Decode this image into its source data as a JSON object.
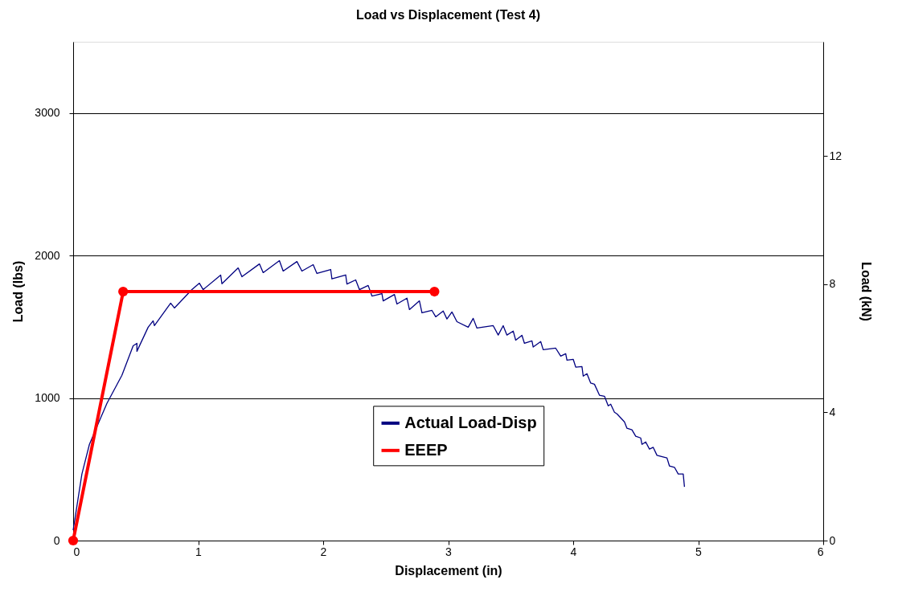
{
  "chart_data": {
    "type": "line",
    "title": "Load vs Displacement (Test 4)",
    "xlabel": "Displacement (in)",
    "ylabel": "Load (lbs)",
    "y2label": "Load (kN)",
    "xlim": [
      0,
      6
    ],
    "xticks": [
      0,
      1,
      2,
      3,
      4,
      5,
      6
    ],
    "ylim": [
      0,
      3500
    ],
    "yticks": [
      0,
      1000,
      2000,
      3000
    ],
    "y2lim": [
      0,
      15.57
    ],
    "y2ticks": [
      0,
      4,
      8,
      12
    ],
    "grid": "y",
    "legend": "bottom",
    "series": [
      {
        "name": "Actual Load-Disp",
        "color": "#000080",
        "marker": "none",
        "x": [
          0.0,
          0.07,
          0.13,
          0.22,
          0.27,
          0.39,
          0.48,
          0.51,
          0.51,
          0.6,
          0.64,
          0.65,
          0.78,
          0.81,
          0.95,
          1.01,
          1.04,
          1.18,
          1.19,
          1.32,
          1.35,
          1.49,
          1.52,
          1.65,
          1.68,
          1.79,
          1.83,
          1.92,
          1.95,
          2.06,
          2.07,
          2.18,
          2.19,
          2.26,
          2.29,
          2.36,
          2.39,
          2.47,
          2.48,
          2.57,
          2.59,
          2.67,
          2.69,
          2.77,
          2.79,
          2.87,
          2.9,
          2.96,
          2.99,
          3.03,
          3.07,
          3.16,
          3.2,
          3.23,
          3.36,
          3.4,
          3.44,
          3.47,
          3.52,
          3.54,
          3.59,
          3.61,
          3.67,
          3.68,
          3.74,
          3.76,
          3.86,
          3.9,
          3.94,
          3.95,
          4.0,
          4.02,
          4.07,
          4.08,
          4.11,
          4.14,
          4.17,
          4.21,
          4.25,
          4.28,
          4.3,
          4.33,
          4.35,
          4.38,
          4.41,
          4.43,
          4.47,
          4.5,
          4.54,
          4.55,
          4.58,
          4.61,
          4.64,
          4.67,
          4.7,
          4.75,
          4.77,
          4.81,
          4.84,
          4.88,
          4.89
        ],
        "values": [
          73,
          467,
          675,
          861,
          962,
          1160,
          1367,
          1384,
          1328,
          1497,
          1542,
          1508,
          1666,
          1632,
          1761,
          1806,
          1761,
          1863,
          1802,
          1913,
          1851,
          1941,
          1880,
          1964,
          1891,
          1958,
          1891,
          1936,
          1874,
          1902,
          1836,
          1864,
          1800,
          1829,
          1761,
          1790,
          1716,
          1733,
          1682,
          1727,
          1660,
          1701,
          1621,
          1682,
          1598,
          1615,
          1570,
          1611,
          1555,
          1604,
          1536,
          1497,
          1559,
          1491,
          1508,
          1442,
          1508,
          1442,
          1470,
          1406,
          1440,
          1384,
          1401,
          1358,
          1396,
          1339,
          1350,
          1294,
          1311,
          1266,
          1272,
          1217,
          1221,
          1154,
          1171,
          1105,
          1097,
          1020,
          1013,
          945,
          957,
          900,
          889,
          861,
          833,
          788,
          777,
          732,
          720,
          675,
          692,
          642,
          654,
          598,
          591,
          580,
          523,
          514,
          467,
          467,
          377
        ]
      },
      {
        "name": "EEEP",
        "color": "#ff0000",
        "marker": "circle",
        "x": [
          0,
          0.4,
          2.89
        ],
        "values": [
          0,
          1747,
          1747
        ]
      }
    ]
  }
}
